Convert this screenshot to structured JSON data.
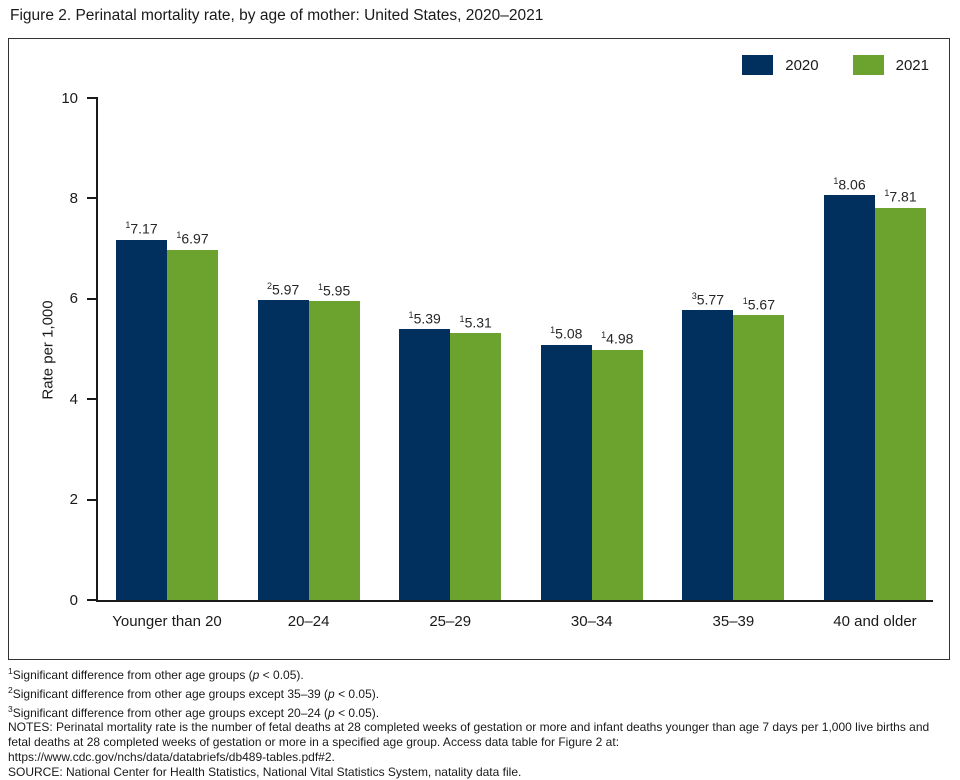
{
  "figure_title": "Figure 2. Perinatal mortality rate, by age of mother: United States, 2020–2021",
  "colors": {
    "bar_2020": "#02305e",
    "bar_2021": "#6ca32f",
    "axis": "#1a1a1a"
  },
  "legend": {
    "items": [
      {
        "label": "2020",
        "color_key": "bar_2020"
      },
      {
        "label": "2021",
        "color_key": "bar_2021"
      }
    ]
  },
  "chart_data": {
    "type": "bar",
    "title": "Perinatal mortality rate, by age of mother: United States, 2020–2021",
    "categories": [
      "Younger than 20",
      "20–24",
      "25–29",
      "30–34",
      "35–39",
      "40 and older"
    ],
    "series": [
      {
        "name": "2020",
        "color_key": "bar_2020",
        "values": [
          7.17,
          5.97,
          5.39,
          5.08,
          5.77,
          8.06
        ],
        "sups": [
          "1",
          "2",
          "1",
          "1",
          "3",
          "1"
        ]
      },
      {
        "name": "2021",
        "color_key": "bar_2021",
        "values": [
          6.97,
          5.95,
          5.31,
          4.98,
          5.67,
          7.81
        ],
        "sups": [
          "1",
          "1",
          "1",
          "1",
          "1",
          "1"
        ]
      }
    ],
    "xlabel": "",
    "ylabel": "Rate per 1,000",
    "ylim": [
      0,
      10
    ],
    "yticks": [
      0,
      2,
      4,
      6,
      8,
      10
    ],
    "grid": false,
    "legend_position": "top-right"
  },
  "footnotes": [
    {
      "sup": "1",
      "parts": [
        {
          "text": "Significant difference from other age groups ("
        },
        {
          "text": "p",
          "italic": true
        },
        {
          "text": " < 0.05)."
        }
      ]
    },
    {
      "sup": "2",
      "parts": [
        {
          "text": "Significant difference from other age groups except 35–39 ("
        },
        {
          "text": "p",
          "italic": true
        },
        {
          "text": " < 0.05)."
        }
      ]
    },
    {
      "sup": "3",
      "parts": [
        {
          "text": "Significant difference from other age groups except 20–24 ("
        },
        {
          "text": "p",
          "italic": true
        },
        {
          "text": " < 0.05)."
        }
      ]
    }
  ],
  "notes_line": "NOTES: Perinatal mortality rate is the number of fetal deaths at 28 completed weeks of gestation or more and infant deaths younger than age 7 days per 1,000 live births and fetal deaths at 28 completed weeks of gestation or more in a specified age group. Access data table for Figure 2 at:",
  "link_line": "https://www.cdc.gov/nchs/data/databriefs/db489-tables.pdf#2.",
  "source_line": "SOURCE: National Center for Health Statistics, National Vital Statistics System, natality data file."
}
